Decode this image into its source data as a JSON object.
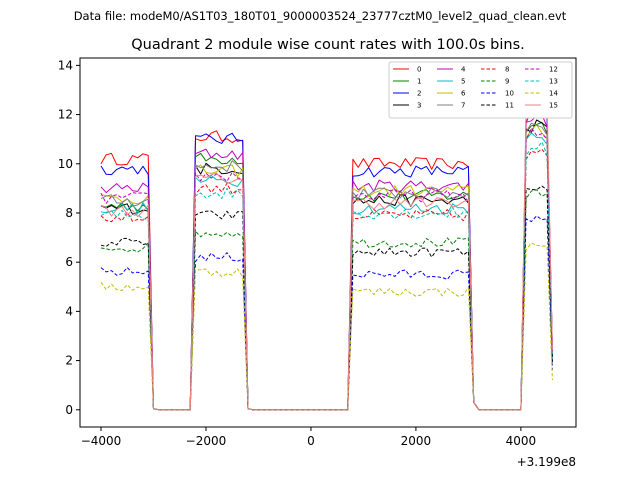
{
  "chart_data": {
    "type": "line",
    "suptitle": "Data file: modeM0/AS1T03_180T01_9000003524_23777cztM0_level2_quad_clean.evt",
    "title": "Quadrant 2 module wise count rates with 100.0s bins.",
    "xlabel": "",
    "ylabel": "",
    "x_offset_label": "+3.199e8",
    "xlim": [
      -4400,
      5050
    ],
    "ylim": [
      -0.7,
      14.3
    ],
    "xticks": [
      -4000,
      -2000,
      0,
      2000,
      4000
    ],
    "xtick_labels": [
      "−4000",
      "−2000",
      "0",
      "2000",
      "4000"
    ],
    "yticks": [
      0,
      2,
      4,
      6,
      8,
      10,
      12,
      14
    ],
    "ytick_labels": [
      "0",
      "2",
      "4",
      "6",
      "8",
      "10",
      "12",
      "14"
    ],
    "bin_width": 100,
    "x_start": -4000,
    "x_end": 4600,
    "active_segments": [
      [
        -4000,
        -3100
      ],
      [
        -2200,
        -1300
      ],
      [
        800,
        3000
      ],
      [
        4100,
        4500
      ]
    ],
    "edge_points": {
      "-3000": 0.05,
      "-1200": 0.05,
      "3100": 0.3,
      "4600": -1
    },
    "legend": {
      "position": "top-right",
      "columns": 4
    },
    "series": [
      {
        "name": "0",
        "color": "#ff0000",
        "dash": "solid",
        "seg_levels": [
          10.2,
          11.1,
          10.0,
          11.8
        ],
        "noise": 0.25
      },
      {
        "name": "1",
        "color": "#008000",
        "dash": "solid",
        "seg_levels": [
          8.3,
          10.2,
          8.7,
          11.4
        ],
        "noise": 0.25
      },
      {
        "name": "2",
        "color": "#0000ff",
        "dash": "solid",
        "seg_levels": [
          9.8,
          11.0,
          9.7,
          12.0
        ],
        "noise": 0.25
      },
      {
        "name": "3",
        "color": "#000000",
        "dash": "solid",
        "seg_levels": [
          8.2,
          9.8,
          8.5,
          11.3
        ],
        "noise": 0.25
      },
      {
        "name": "4",
        "color": "#bf00bf",
        "dash": "solid",
        "seg_levels": [
          9.0,
          10.4,
          9.1,
          11.7
        ],
        "noise": 0.25
      },
      {
        "name": "5",
        "color": "#00bfbf",
        "dash": "solid",
        "seg_levels": [
          8.2,
          9.3,
          8.2,
          11.0
        ],
        "noise": 0.25
      },
      {
        "name": "6",
        "color": "#bfbf00",
        "dash": "solid",
        "seg_levels": [
          8.6,
          9.7,
          8.9,
          11.2
        ],
        "noise": 0.25
      },
      {
        "name": "7",
        "color": "#808080",
        "dash": "solid",
        "seg_levels": [
          8.5,
          9.9,
          8.8,
          11.4
        ],
        "noise": 0.25
      },
      {
        "name": "8",
        "color": "#ff0000",
        "dash": "dashed",
        "seg_levels": [
          7.8,
          9.0,
          7.9,
          10.2
        ],
        "noise": 0.25
      },
      {
        "name": "9",
        "color": "#008000",
        "dash": "dashed",
        "seg_levels": [
          6.6,
          7.2,
          6.8,
          8.6
        ],
        "noise": 0.2
      },
      {
        "name": "10",
        "color": "#0000ff",
        "dash": "dashed",
        "seg_levels": [
          5.6,
          6.2,
          5.5,
          7.6
        ],
        "noise": 0.2
      },
      {
        "name": "11",
        "color": "#000000",
        "dash": "dashed",
        "seg_levels": [
          6.8,
          7.9,
          6.4,
          8.8
        ],
        "noise": 0.2
      },
      {
        "name": "12",
        "color": "#bf00bf",
        "dash": "dashed",
        "seg_levels": [
          8.6,
          9.5,
          8.7,
          11.0
        ],
        "noise": 0.25
      },
      {
        "name": "13",
        "color": "#00bfbf",
        "dash": "dashed",
        "seg_levels": [
          7.9,
          8.8,
          8.0,
          10.5
        ],
        "noise": 0.25
      },
      {
        "name": "14",
        "color": "#bfbf00",
        "dash": "dashed",
        "seg_levels": [
          5.0,
          5.6,
          4.8,
          6.5
        ],
        "noise": 0.2
      },
      {
        "name": "15",
        "color": "#f08080",
        "dash": "solid",
        "seg_levels": [
          8.1,
          9.4,
          8.4,
          12.4
        ],
        "noise": 0.25
      }
    ]
  }
}
